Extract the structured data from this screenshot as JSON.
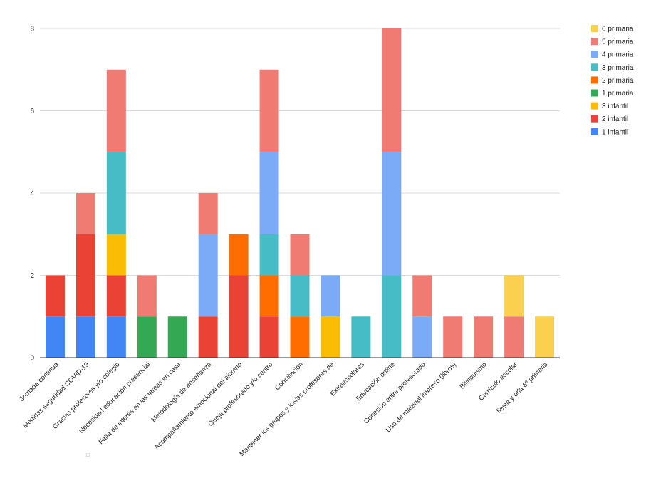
{
  "chart_data": {
    "type": "bar",
    "stacked": true,
    "categories": [
      "Jornada continua",
      "Medidas seguridad COVID-19",
      "Gracias profesores y/o colegio",
      "Necesidad educación presencial",
      "Falta de interés en las tareas en casa",
      "Metodología de enseñanza",
      "Acompañamiento emocional del alumno",
      "Queja profesorado y/o centro",
      "Conciliación",
      "Mantener los grupos y los/as profesores de",
      "Extraescolares",
      "Educación online",
      "Cohesión entre profesorado",
      "Uso de material impreso (libros)",
      "Bilingüismo",
      "Currículo escolar",
      "fiesta y orla 6º primaria"
    ],
    "category_marks": {
      "2": "□",
      "16": "□"
    },
    "series": [
      {
        "name": "1 infantil",
        "color": "#4285f4",
        "values": [
          1,
          1,
          1,
          0,
          0,
          0,
          0,
          0,
          0,
          0,
          0,
          0,
          0,
          0,
          0,
          0,
          0
        ]
      },
      {
        "name": "2 infantil",
        "color": "#ea4335",
        "values": [
          1,
          2,
          1,
          0,
          0,
          1,
          2,
          1,
          0,
          0,
          0,
          0,
          0,
          0,
          0,
          0,
          0
        ]
      },
      {
        "name": "3 infantil",
        "color": "#fbbc04",
        "values": [
          0,
          0,
          1,
          0,
          0,
          0,
          0,
          0,
          0,
          1,
          0,
          0,
          0,
          0,
          0,
          0,
          0
        ]
      },
      {
        "name": "1 primaria",
        "color": "#34a853",
        "values": [
          0,
          0,
          0,
          1,
          1,
          0,
          0,
          0,
          0,
          0,
          0,
          0,
          0,
          0,
          0,
          0,
          0
        ]
      },
      {
        "name": "2 primaria",
        "color": "#ff6d01",
        "values": [
          0,
          0,
          0,
          0,
          0,
          0,
          1,
          1,
          1,
          0,
          0,
          0,
          0,
          0,
          0,
          0,
          0
        ]
      },
      {
        "name": "3 primaria",
        "color": "#46bdc6",
        "values": [
          0,
          0,
          2,
          0,
          0,
          0,
          0,
          1,
          1,
          0,
          1,
          2,
          0,
          0,
          0,
          0,
          0
        ]
      },
      {
        "name": "4 primaria",
        "color": "#7baaf7",
        "values": [
          0,
          0,
          0,
          0,
          0,
          2,
          0,
          2,
          0,
          1,
          0,
          3,
          1,
          0,
          0,
          0,
          0
        ]
      },
      {
        "name": "5 primaria",
        "color": "#f07b72",
        "values": [
          0,
          1,
          2,
          1,
          0,
          1,
          0,
          2,
          1,
          0,
          0,
          3,
          1,
          1,
          1,
          1,
          0
        ]
      },
      {
        "name": "6 primaria",
        "color": "#fcd04f",
        "values": [
          0,
          0,
          0,
          0,
          0,
          0,
          0,
          0,
          0,
          0,
          0,
          0,
          0,
          0,
          0,
          1,
          1
        ]
      }
    ],
    "ylim": [
      0,
      8
    ],
    "yticks": [
      0,
      2,
      4,
      6,
      8
    ],
    "grid": true,
    "legend_position": "right",
    "legend_order": [
      "6 primaria",
      "5 primaria",
      "4 primaria",
      "3 primaria",
      "2 primaria",
      "1 primaria",
      "3 infantil",
      "2 infantil",
      "1 infantil"
    ],
    "title": "",
    "xlabel": "",
    "ylabel": ""
  }
}
